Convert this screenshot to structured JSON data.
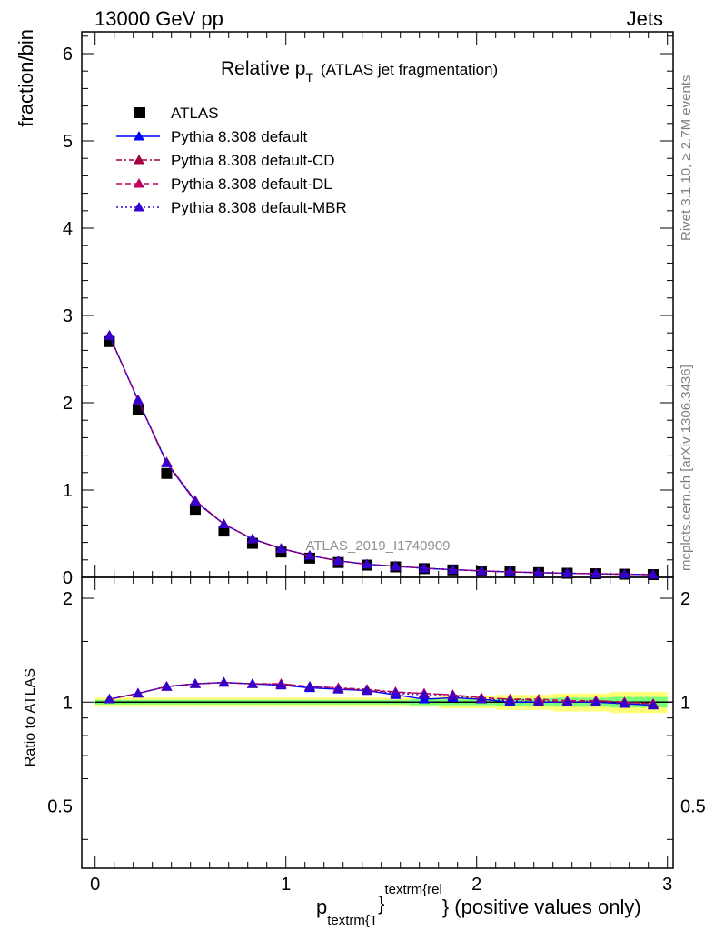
{
  "header": {
    "left": "13000 GeV pp",
    "right": "Jets"
  },
  "title": {
    "main": "Relative p",
    "sub": "T",
    "suffix": "(ATLAS jet fragmentation)"
  },
  "side_notes": {
    "rivet": "Rivet 3.1.10, ≥ 2.7M events",
    "site": "mcplots.cern.ch [arXiv:1306.3436]"
  },
  "analysis_id": "ATLAS_2019_I1740909",
  "colors": {
    "data": "#000000",
    "default": "#0000ff",
    "cd": "#a00040",
    "dl": "#c00060",
    "mbr": "#3300cc",
    "band_yellow": "#ffff77",
    "band_green": "#77ff77"
  },
  "legend": [
    {
      "label": "ATLAS",
      "style": "data"
    },
    {
      "label": "Pythia 8.308 default",
      "style": "default"
    },
    {
      "label": "Pythia 8.308 default-CD",
      "style": "cd"
    },
    {
      "label": "Pythia 8.308 default-DL",
      "style": "dl"
    },
    {
      "label": "Pythia 8.308 default-MBR",
      "style": "mbr"
    }
  ],
  "axes": {
    "main_ylabel": "fraction/bin",
    "ratio_ylabel": "Ratio to ATLAS",
    "xlabel": {
      "p": "p",
      "sub": "textrm{T",
      "sup": "textrm{rel",
      "brace": "}",
      "tail": "} (positive values only)"
    },
    "main_yticks": [
      "0",
      "1",
      "2",
      "3",
      "4",
      "5",
      "6"
    ],
    "ratio_yticks": [
      "0.5",
      "1",
      "2"
    ],
    "xticks": [
      "0",
      "1",
      "2",
      "3"
    ]
  },
  "chart_data": {
    "type": "line",
    "x": [
      0.075,
      0.225,
      0.375,
      0.525,
      0.675,
      0.825,
      0.975,
      1.125,
      1.275,
      1.425,
      1.575,
      1.725,
      1.875,
      2.025,
      2.175,
      2.325,
      2.475,
      2.625,
      2.775,
      2.925
    ],
    "xlim": [
      -0.07,
      3.03
    ],
    "main_ylim": [
      0,
      6.25
    ],
    "ratio_ylim": [
      0.33,
      2.3
    ],
    "series": [
      {
        "name": "ATLAS",
        "key": "data",
        "values": [
          2.7,
          1.92,
          1.19,
          0.78,
          0.53,
          0.39,
          0.29,
          0.22,
          0.17,
          0.14,
          0.12,
          0.1,
          0.085,
          0.072,
          0.062,
          0.054,
          0.047,
          0.041,
          0.036,
          0.031
        ]
      },
      {
        "name": "Pythia 8.308 default",
        "key": "default",
        "values": [
          2.77,
          2.03,
          1.31,
          0.87,
          0.61,
          0.44,
          0.33,
          0.25,
          0.19,
          0.15,
          0.127,
          0.103,
          0.088,
          0.074,
          0.062,
          0.054,
          0.047,
          0.041,
          0.036,
          0.031
        ],
        "ratio": [
          1.02,
          1.06,
          1.11,
          1.13,
          1.14,
          1.13,
          1.12,
          1.1,
          1.09,
          1.08,
          1.05,
          1.02,
          1.03,
          1.02,
          1.0,
          1.0,
          1.0,
          1.0,
          0.99,
          0.98
        ]
      },
      {
        "name": "Pythia 8.308 default-CD",
        "key": "cd",
        "values": [
          2.77,
          2.03,
          1.32,
          0.88,
          0.61,
          0.44,
          0.33,
          0.25,
          0.19,
          0.15,
          0.128,
          0.105,
          0.089,
          0.074,
          0.063,
          0.055,
          0.047,
          0.042,
          0.036,
          0.031
        ],
        "ratio": [
          1.02,
          1.06,
          1.11,
          1.13,
          1.14,
          1.13,
          1.13,
          1.11,
          1.1,
          1.09,
          1.07,
          1.06,
          1.05,
          1.03,
          1.02,
          1.01,
          1.0,
          1.01,
          1.0,
          0.99
        ]
      },
      {
        "name": "Pythia 8.308 default-DL",
        "key": "dl",
        "values": [
          2.77,
          2.03,
          1.32,
          0.88,
          0.61,
          0.44,
          0.33,
          0.25,
          0.19,
          0.15,
          0.128,
          0.106,
          0.089,
          0.074,
          0.063,
          0.055,
          0.047,
          0.042,
          0.036,
          0.031
        ],
        "ratio": [
          1.02,
          1.06,
          1.11,
          1.13,
          1.14,
          1.13,
          1.13,
          1.11,
          1.1,
          1.08,
          1.07,
          1.06,
          1.05,
          1.03,
          1.02,
          1.02,
          1.01,
          1.01,
          1.0,
          0.99
        ]
      },
      {
        "name": "Pythia 8.308 default-MBR",
        "key": "mbr",
        "values": [
          2.77,
          2.03,
          1.31,
          0.87,
          0.61,
          0.44,
          0.33,
          0.25,
          0.19,
          0.15,
          0.127,
          0.104,
          0.088,
          0.074,
          0.062,
          0.054,
          0.047,
          0.041,
          0.036,
          0.031
        ],
        "ratio": [
          1.02,
          1.06,
          1.11,
          1.13,
          1.14,
          1.13,
          1.12,
          1.11,
          1.09,
          1.08,
          1.06,
          1.05,
          1.04,
          1.02,
          1.01,
          1.0,
          1.0,
          1.0,
          0.99,
          0.98
        ]
      }
    ],
    "ratio_band": {
      "yellow": [
        0.03,
        0.03,
        0.03,
        0.03,
        0.03,
        0.03,
        0.03,
        0.03,
        0.03,
        0.03,
        0.03,
        0.03,
        0.04,
        0.04,
        0.05,
        0.05,
        0.06,
        0.06,
        0.07,
        0.07
      ],
      "green": [
        0.015,
        0.015,
        0.015,
        0.015,
        0.015,
        0.015,
        0.015,
        0.015,
        0.015,
        0.015,
        0.015,
        0.02,
        0.02,
        0.02,
        0.025,
        0.025,
        0.03,
        0.03,
        0.035,
        0.035
      ]
    }
  }
}
